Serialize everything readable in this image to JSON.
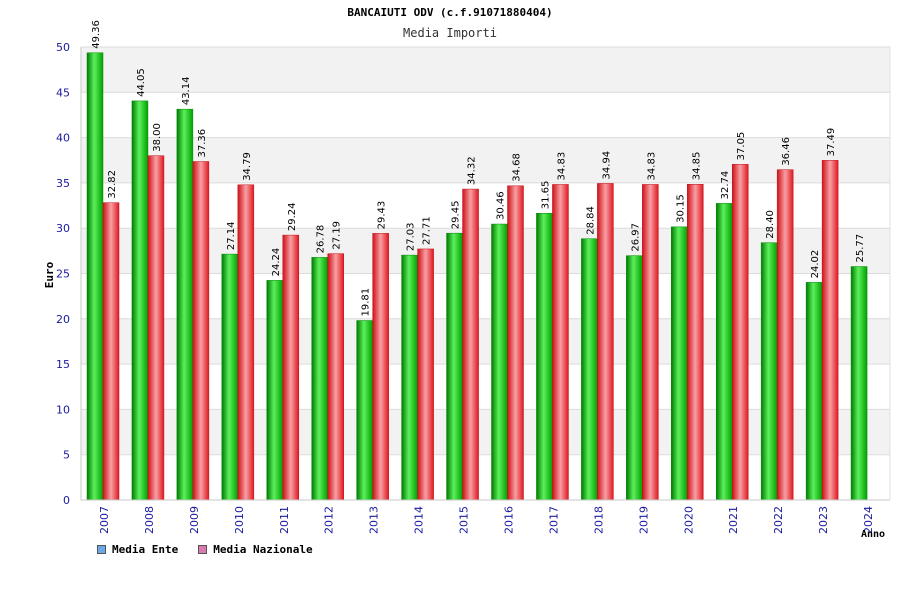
{
  "header": {
    "title": "BANCAIUTI ODV (c.f.91071880404)",
    "subtitle": "Media Importi"
  },
  "legend": {
    "ente_label": "Media Ente",
    "nazionale_label": "Media Nazionale"
  },
  "chart_data": {
    "type": "bar",
    "title": "BANCAIUTI ODV (c.f.91071880404)",
    "subtitle": "Media Importi",
    "xlabel": "Anno",
    "ylabel": "Euro",
    "ylim": [
      0,
      50
    ],
    "yticks": [
      0,
      5,
      10,
      15,
      20,
      25,
      30,
      35,
      40,
      45,
      50
    ],
    "grid": true,
    "legend_position": "bottom-left",
    "categories": [
      "2007",
      "2008",
      "2009",
      "2010",
      "2011",
      "2012",
      "2013",
      "2014",
      "2015",
      "2016",
      "2017",
      "2018",
      "2019",
      "2020",
      "2021",
      "2022",
      "2023",
      "2024"
    ],
    "series": [
      {
        "name": "Media Ente",
        "color": "#00b000",
        "legend_color": "#6aa8e8",
        "values": [
          49.36,
          44.05,
          43.14,
          27.14,
          24.24,
          26.78,
          19.81,
          27.03,
          29.45,
          30.46,
          31.65,
          28.84,
          26.97,
          30.15,
          32.74,
          28.4,
          24.02,
          25.77
        ],
        "labels": [
          "49.36",
          "44.05",
          "43.14",
          "27.14",
          "24.24",
          "26.78",
          "19.81",
          "27.03",
          "29.45",
          "30.46",
          "31.65",
          "28.84",
          "26.97",
          "30.15",
          "32.74",
          "28.40",
          "24.02",
          "25.77"
        ]
      },
      {
        "name": "Media Nazionale",
        "color": "#e8202a",
        "legend_color": "#d97ab0",
        "values": [
          32.82,
          38.0,
          37.36,
          34.79,
          29.24,
          27.19,
          29.43,
          27.71,
          34.32,
          34.68,
          34.83,
          34.94,
          34.83,
          34.85,
          37.05,
          36.46,
          37.49,
          null
        ],
        "labels": [
          "32.82",
          "38.00",
          "37.36",
          "34.79",
          "29.24",
          "27.19",
          "29.43",
          "27.71",
          "34.32",
          "34.68",
          "34.83",
          "34.94",
          "34.83",
          "34.85",
          "37.05",
          "36.46",
          "37.49",
          ""
        ]
      }
    ]
  }
}
